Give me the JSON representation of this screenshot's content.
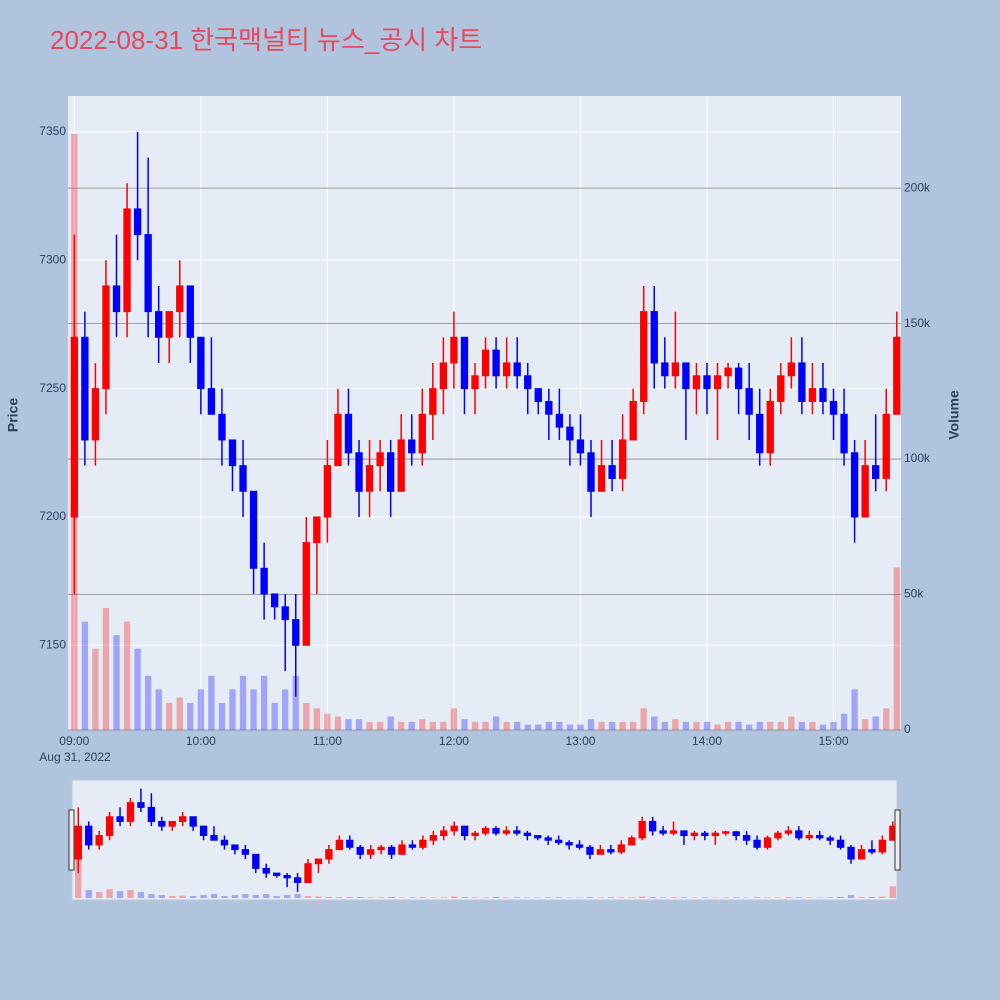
{
  "chart_data": {
    "type": "candlestick",
    "title": "2022-08-31 한국맥널티 뉴스_공시 차트",
    "y_label": "Price",
    "y2_label": "Volume",
    "x_date_label": "Aug 31, 2022",
    "increasing_color": "#ff0000",
    "decreasing_color": "#0000ff",
    "x": [
      "2022-08-31 09:00",
      "2022-08-31 09:05",
      "2022-08-31 09:10",
      "2022-08-31 09:15",
      "2022-08-31 09:20",
      "2022-08-31 09:25",
      "2022-08-31 09:30",
      "2022-08-31 09:35",
      "2022-08-31 09:40",
      "2022-08-31 09:45",
      "2022-08-31 09:50",
      "2022-08-31 09:55",
      "2022-08-31 10:00",
      "2022-08-31 10:05",
      "2022-08-31 10:10",
      "2022-08-31 10:15",
      "2022-08-31 10:20",
      "2022-08-31 10:25",
      "2022-08-31 10:30",
      "2022-08-31 10:35",
      "2022-08-31 10:40",
      "2022-08-31 10:45",
      "2022-08-31 10:50",
      "2022-08-31 10:55",
      "2022-08-31 11:00",
      "2022-08-31 11:05",
      "2022-08-31 11:10",
      "2022-08-31 11:15",
      "2022-08-31 11:20",
      "2022-08-31 11:25",
      "2022-08-31 11:30",
      "2022-08-31 11:35",
      "2022-08-31 11:40",
      "2022-08-31 11:45",
      "2022-08-31 11:50",
      "2022-08-31 11:55",
      "2022-08-31 12:00",
      "2022-08-31 12:05",
      "2022-08-31 12:10",
      "2022-08-31 12:15",
      "2022-08-31 12:20",
      "2022-08-31 12:25",
      "2022-08-31 12:30",
      "2022-08-31 12:35",
      "2022-08-31 12:40",
      "2022-08-31 12:45",
      "2022-08-31 12:50",
      "2022-08-31 12:55",
      "2022-08-31 13:00",
      "2022-08-31 13:05",
      "2022-08-31 13:10",
      "2022-08-31 13:15",
      "2022-08-31 13:20",
      "2022-08-31 13:25",
      "2022-08-31 13:30",
      "2022-08-31 13:35",
      "2022-08-31 13:40",
      "2022-08-31 13:45",
      "2022-08-31 13:50",
      "2022-08-31 13:55",
      "2022-08-31 14:00",
      "2022-08-31 14:05",
      "2022-08-31 14:10",
      "2022-08-31 14:15",
      "2022-08-31 14:20",
      "2022-08-31 14:25",
      "2022-08-31 14:30",
      "2022-08-31 14:35",
      "2022-08-31 14:40",
      "2022-08-31 14:45",
      "2022-08-31 14:50",
      "2022-08-31 14:55",
      "2022-08-31 15:00",
      "2022-08-31 15:05",
      "2022-08-31 15:10",
      "2022-08-31 15:15",
      "2022-08-31 15:20",
      "2022-08-31 15:25",
      "2022-08-31 15:30"
    ],
    "open": [
      7200,
      7270,
      7230,
      7250,
      7290,
      7280,
      7320,
      7310,
      7280,
      7270,
      7280,
      7290,
      7270,
      7250,
      7240,
      7230,
      7220,
      7210,
      7180,
      7170,
      7165,
      7160,
      7150,
      7190,
      7200,
      7220,
      7240,
      7225,
      7210,
      7220,
      7225,
      7210,
      7230,
      7225,
      7240,
      7250,
      7260,
      7270,
      7250,
      7255,
      7265,
      7255,
      7260,
      7255,
      7250,
      7245,
      7240,
      7235,
      7230,
      7225,
      7210,
      7220,
      7215,
      7230,
      7245,
      7280,
      7260,
      7255,
      7260,
      7250,
      7255,
      7250,
      7255,
      7258,
      7250,
      7240,
      7225,
      7245,
      7255,
      7260,
      7245,
      7250,
      7245,
      7240,
      7225,
      7200,
      7220,
      7215,
      7240
    ],
    "high": [
      7310,
      7280,
      7260,
      7300,
      7310,
      7330,
      7350,
      7340,
      7290,
      7280,
      7300,
      7290,
      7270,
      7270,
      7250,
      7230,
      7230,
      7210,
      7190,
      7170,
      7170,
      7170,
      7200,
      7200,
      7230,
      7250,
      7250,
      7230,
      7230,
      7230,
      7230,
      7240,
      7240,
      7250,
      7260,
      7270,
      7280,
      7270,
      7260,
      7270,
      7270,
      7270,
      7270,
      7260,
      7250,
      7250,
      7250,
      7240,
      7240,
      7230,
      7230,
      7230,
      7240,
      7250,
      7290,
      7290,
      7270,
      7280,
      7260,
      7260,
      7260,
      7260,
      7260,
      7260,
      7260,
      7250,
      7250,
      7260,
      7270,
      7270,
      7260,
      7260,
      7250,
      7250,
      7230,
      7230,
      7240,
      7250,
      7280
    ],
    "low": [
      7170,
      7220,
      7220,
      7240,
      7270,
      7270,
      7300,
      7270,
      7260,
      7260,
      7270,
      7260,
      7240,
      7240,
      7220,
      7210,
      7200,
      7170,
      7160,
      7160,
      7140,
      7130,
      7150,
      7170,
      7190,
      7220,
      7220,
      7200,
      7200,
      7210,
      7200,
      7210,
      7220,
      7220,
      7230,
      7240,
      7250,
      7240,
      7240,
      7250,
      7250,
      7250,
      7250,
      7240,
      7240,
      7230,
      7230,
      7220,
      7220,
      7200,
      7210,
      7210,
      7210,
      7230,
      7240,
      7250,
      7250,
      7250,
      7230,
      7240,
      7240,
      7230,
      7250,
      7240,
      7230,
      7220,
      7220,
      7240,
      7250,
      7240,
      7240,
      7240,
      7230,
      7220,
      7190,
      7200,
      7210,
      7210,
      7240
    ],
    "close": [
      7270,
      7230,
      7250,
      7290,
      7280,
      7320,
      7310,
      7280,
      7270,
      7280,
      7290,
      7270,
      7250,
      7240,
      7230,
      7220,
      7210,
      7180,
      7170,
      7165,
      7160,
      7150,
      7190,
      7200,
      7220,
      7240,
      7225,
      7210,
      7220,
      7225,
      7210,
      7230,
      7225,
      7240,
      7250,
      7260,
      7270,
      7250,
      7255,
      7265,
      7255,
      7260,
      7255,
      7250,
      7245,
      7240,
      7235,
      7230,
      7225,
      7210,
      7220,
      7215,
      7230,
      7245,
      7280,
      7260,
      7255,
      7260,
      7250,
      7255,
      7250,
      7255,
      7258,
      7250,
      7240,
      7225,
      7245,
      7255,
      7260,
      7245,
      7250,
      7245,
      7240,
      7225,
      7200,
      7220,
      7215,
      7240,
      7270
    ],
    "volume": [
      220000,
      40000,
      30000,
      45000,
      35000,
      40000,
      30000,
      20000,
      15000,
      10000,
      12000,
      10000,
      15000,
      20000,
      10000,
      15000,
      20000,
      15000,
      20000,
      10000,
      15000,
      20000,
      10000,
      8000,
      6000,
      5000,
      4000,
      4000,
      3000,
      3000,
      5000,
      3000,
      3000,
      4000,
      3000,
      3000,
      8000,
      4000,
      3000,
      3000,
      5000,
      3000,
      3000,
      2000,
      2000,
      3000,
      3000,
      2000,
      2000,
      4000,
      3000,
      3000,
      3000,
      3000,
      8000,
      5000,
      3000,
      4000,
      3000,
      3000,
      3000,
      2000,
      3000,
      3000,
      2000,
      3000,
      3000,
      3000,
      5000,
      3000,
      3000,
      2000,
      3000,
      6000,
      15000,
      4000,
      5000,
      8000,
      60000
    ],
    "xlim": [
      "2022-08-31 08:57",
      "2022-08-31 15:32"
    ],
    "xticks": [
      {
        "value": "2022-08-31 09:00",
        "label": "09:00"
      },
      {
        "value": "2022-08-31 10:00",
        "label": "10:00"
      },
      {
        "value": "2022-08-31 11:00",
        "label": "11:00"
      },
      {
        "value": "2022-08-31 12:00",
        "label": "12:00"
      },
      {
        "value": "2022-08-31 13:00",
        "label": "13:00"
      },
      {
        "value": "2022-08-31 14:00",
        "label": "14:00"
      },
      {
        "value": "2022-08-31 15:00",
        "label": "15:00"
      }
    ],
    "ylim": [
      7117,
      7364
    ],
    "yticks": [
      7150,
      7200,
      7250,
      7300,
      7350
    ],
    "y2lim": [
      0,
      234000
    ],
    "y2ticks": [
      0,
      {
        "value": 50000,
        "label": "50k"
      },
      {
        "value": 100000,
        "label": "100k"
      },
      {
        "value": 150000,
        "label": "150k"
      },
      {
        "value": 200000,
        "label": "200k"
      }
    ],
    "grid": true,
    "range_slider": true
  }
}
